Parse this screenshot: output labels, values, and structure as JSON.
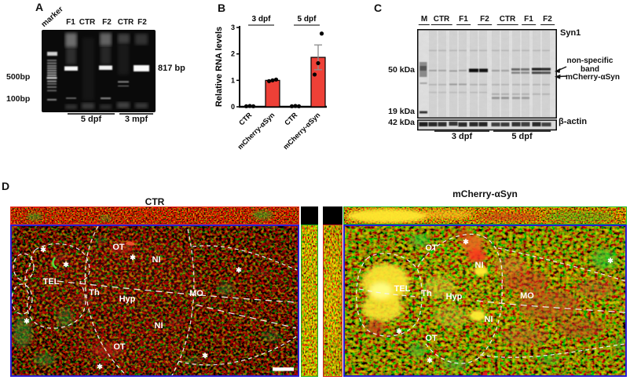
{
  "panel_a": {
    "label": "A",
    "lanes": [
      "marker",
      "F1",
      "CTR",
      "F2",
      "CTR",
      "F2"
    ],
    "band_size": "817 bp",
    "mw_top": "500bp",
    "mw_bottom": "100bp",
    "groups": [
      "5 dpf",
      "3 mpf"
    ]
  },
  "panel_b": {
    "label": "B"
  },
  "chart_data": {
    "type": "bar",
    "title": "",
    "ylabel": "Relative RNA levels",
    "ylim": [
      0,
      3
    ],
    "yticks": [
      0,
      1,
      2,
      3
    ],
    "grid": false,
    "legend_position": "none",
    "groups": [
      "3 dpf",
      "5 dpf"
    ],
    "categories": [
      "CTR",
      "mCherry-αSyn",
      "CTR",
      "mCherry-αSyn"
    ],
    "values": [
      0,
      1.0,
      0,
      1.87
    ],
    "errors": [
      0,
      0.04,
      0,
      0.47
    ],
    "points": [
      [
        0.02,
        0.03,
        0.02
      ],
      [
        0.97,
        1.0,
        1.03
      ],
      [
        0.02,
        0.03,
        0.02
      ],
      [
        1.22,
        1.65,
        2.77
      ]
    ],
    "bar_color": "#ee4037",
    "error_color": "#8c8c8c"
  },
  "panel_c": {
    "label": "C",
    "lanes": [
      "M",
      "CTR",
      "F1",
      "F2",
      "CTR",
      "F1",
      "F2"
    ],
    "blot_title": "Syn1",
    "mw_labels": [
      "50 kDa",
      "19 kDa",
      "42 kDa"
    ],
    "annotation_line1": "non-specific",
    "annotation_line2": "band",
    "annotation_mcherry": "mCherry-αSyn",
    "loading_control": "β-actin",
    "groups": [
      "3 dpf",
      "5 dpf"
    ]
  },
  "panel_d": {
    "label": "D",
    "left_title": "CTR",
    "right_title": "mCherry-αSyn",
    "asterisk": "✱",
    "regions": {
      "ot": "OT",
      "ni": "NI",
      "tel": "TEL",
      "th": "Th",
      "hyp": "Hyp",
      "mo": "MO"
    },
    "colors": {
      "main_border": "#2a1ed0",
      "left_top_border": "#e03020",
      "left_side_border": "#1db41d",
      "right_top_border": "#1db41d",
      "right_side_border": "#cf1f1f"
    }
  }
}
